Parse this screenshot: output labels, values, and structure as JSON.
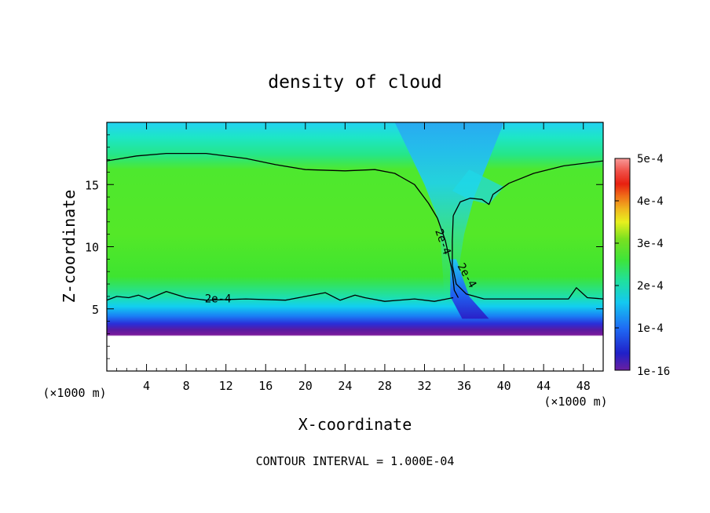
{
  "chart_data": {
    "type": "heatmap",
    "title": "density of cloud",
    "xlabel": "X-coordinate",
    "ylabel": "Z-coordinate",
    "x_unit_label": "(×1000 m)",
    "y_unit_label": "(×1000 m)",
    "xlim": [
      0,
      50
    ],
    "ylim": [
      0,
      20
    ],
    "x_ticks": [
      4,
      8,
      12,
      16,
      20,
      24,
      28,
      32,
      36,
      40,
      44,
      48
    ],
    "y_ticks": [
      5,
      10,
      15
    ],
    "footer": "CONTOUR INTERVAL = 1.000E-04",
    "colorbar": {
      "min_label": "1e-16",
      "ticks": [
        "1e-4",
        "2e-4",
        "3e-4",
        "4e-4",
        "5e-4"
      ],
      "values": [
        0.0001,
        0.0002,
        0.0003,
        0.0004,
        0.0005
      ],
      "range": [
        0,
        0.0005
      ]
    },
    "contour_labels": [
      "2e-4",
      "2e-4",
      "2e-4"
    ],
    "contour_2e4_upper": {
      "left_branch": [
        [
          0,
          16.9
        ],
        [
          3,
          17.3
        ],
        [
          6,
          17.5
        ],
        [
          10,
          17.5
        ],
        [
          14,
          17.1
        ],
        [
          17,
          16.6
        ],
        [
          20,
          16.2
        ],
        [
          24,
          16.1
        ],
        [
          27,
          16.2
        ],
        [
          29,
          15.9
        ],
        [
          31,
          15.0
        ],
        [
          32.4,
          13.5
        ],
        [
          33.3,
          12.3
        ]
      ],
      "right_branch": [
        [
          34.9,
          12.5
        ],
        [
          35.6,
          13.6
        ],
        [
          36.6,
          13.9
        ],
        [
          37.8,
          13.8
        ],
        [
          38.5,
          13.4
        ],
        [
          38.9,
          14.2
        ],
        [
          40.5,
          15.1
        ],
        [
          43,
          15.9
        ],
        [
          46,
          16.5
        ],
        [
          50,
          16.9
        ]
      ],
      "throat_left": [
        [
          33.3,
          12.3
        ],
        [
          34.1,
          10.5
        ],
        [
          34.8,
          8.0
        ],
        [
          35.0,
          6.5
        ],
        [
          35.4,
          5.9
        ]
      ],
      "throat_right": [
        [
          34.9,
          12.5
        ],
        [
          34.8,
          10.5
        ],
        [
          34.8,
          8.5
        ],
        [
          35.2,
          7.0
        ],
        [
          36.2,
          6.2
        ],
        [
          38.0,
          5.8
        ],
        [
          46.5,
          5.8
        ],
        [
          47.3,
          6.7
        ],
        [
          48.4,
          5.9
        ],
        [
          50,
          5.8
        ]
      ]
    },
    "contour_2e4_lower": [
      [
        0,
        5.7
      ],
      [
        1,
        6.0
      ],
      [
        2.2,
        5.9
      ],
      [
        3.2,
        6.1
      ],
      [
        4.2,
        5.8
      ],
      [
        6,
        6.4
      ],
      [
        8,
        5.9
      ],
      [
        10,
        5.7
      ],
      [
        14,
        5.8
      ],
      [
        18,
        5.7
      ],
      [
        20,
        6.0
      ],
      [
        22,
        6.3
      ],
      [
        23.5,
        5.7
      ],
      [
        25,
        6.1
      ],
      [
        26,
        5.9
      ],
      [
        28,
        5.6
      ],
      [
        31,
        5.8
      ],
      [
        33,
        5.6
      ],
      [
        34.9,
        5.9
      ]
    ],
    "cloud_base_km": 3.0,
    "updraft_x_km": [
      32,
      38
    ]
  }
}
